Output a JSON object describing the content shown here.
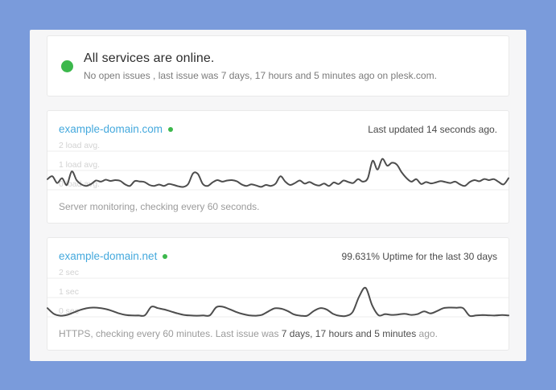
{
  "colors": {
    "frame_bg": "#7a9bdb",
    "page_bg": "#f6f6f7",
    "card_bg": "#ffffff",
    "card_border": "#e9e9e9",
    "green": "#3cb84c",
    "domain_blue": "#45a9dd",
    "chart_line": "#4d4d4d",
    "grid_line": "#ededed",
    "tick_label": "#d2d2d2"
  },
  "status_banner": {
    "title": "All services are online.",
    "subtitle": "No open issues , last issue was 7 days, 17 hours and 5 minutes ago on plesk.com."
  },
  "monitors": [
    {
      "domain": "example-domain.com",
      "header_right": "Last updated 14 seconds ago.",
      "footer_prefix": "Server monitoring, checking every 60 seconds.",
      "footer_strong": "",
      "footer_suffix": ""
    },
    {
      "domain": "example-domain.net",
      "header_right": "99.631% Uptime for the last 30 days",
      "footer_prefix": "HTTPS, checking every 60 minutes. Last issue was ",
      "footer_strong": "7 days, 17 hours and 5 minutes",
      "footer_suffix": " ago."
    }
  ],
  "chart_data": [
    {
      "type": "line",
      "title": "example-domain.com",
      "xlabel": "",
      "ylabel": "load avg.",
      "y_ticks": [
        "2 load avg.",
        "1 load avg.",
        "0 load avg."
      ],
      "y_tick_values": [
        2,
        1,
        0
      ],
      "ylim": [
        0,
        2.5
      ],
      "grid": true,
      "legend": "none",
      "values": [
        0.55,
        0.7,
        0.35,
        0.6,
        0.25,
        0.95,
        0.5,
        0.28,
        0.2,
        0.3,
        0.48,
        0.42,
        0.52,
        0.46,
        0.5,
        0.46,
        0.28,
        0.2,
        0.45,
        0.43,
        0.4,
        0.25,
        0.2,
        0.27,
        0.2,
        0.3,
        0.25,
        0.18,
        0.15,
        0.3,
        0.85,
        0.82,
        0.3,
        0.2,
        0.38,
        0.5,
        0.42,
        0.48,
        0.5,
        0.44,
        0.28,
        0.2,
        0.28,
        0.22,
        0.15,
        0.25,
        0.2,
        0.32,
        0.7,
        0.42,
        0.25,
        0.35,
        0.48,
        0.32,
        0.4,
        0.28,
        0.22,
        0.32,
        0.2,
        0.38,
        0.3,
        0.48,
        0.4,
        0.35,
        0.55,
        0.42,
        0.6,
        1.5,
        1.05,
        1.6,
        1.25,
        1.4,
        1.3,
        0.9,
        0.6,
        0.42,
        0.55,
        0.3,
        0.4,
        0.33,
        0.38,
        0.45,
        0.4,
        0.35,
        0.42,
        0.28,
        0.2,
        0.4,
        0.5,
        0.44,
        0.56,
        0.5,
        0.55,
        0.4,
        0.28,
        0.6
      ]
    },
    {
      "type": "line",
      "title": "example-domain.net",
      "xlabel": "",
      "ylabel": "sec",
      "y_ticks": [
        "2 sec",
        "1 sec",
        "0 sec"
      ],
      "y_tick_values": [
        2,
        1,
        0
      ],
      "ylim": [
        0,
        2.5
      ],
      "grid": true,
      "legend": "none",
      "values": [
        0.45,
        0.15,
        0.06,
        0.1,
        0.22,
        0.35,
        0.44,
        0.48,
        0.46,
        0.4,
        0.3,
        0.18,
        0.1,
        0.07,
        0.07,
        0.08,
        0.52,
        0.45,
        0.38,
        0.28,
        0.18,
        0.1,
        0.07,
        0.06,
        0.07,
        0.08,
        0.5,
        0.52,
        0.4,
        0.26,
        0.15,
        0.08,
        0.06,
        0.1,
        0.28,
        0.44,
        0.42,
        0.3,
        0.12,
        0.06,
        0.06,
        0.3,
        0.45,
        0.38,
        0.15,
        0.05,
        0.05,
        0.25,
        1.05,
        1.5,
        0.6,
        0.08,
        0.14,
        0.1,
        0.12,
        0.16,
        0.1,
        0.14,
        0.28,
        0.18,
        0.3,
        0.45,
        0.48,
        0.47,
        0.45,
        0.06,
        0.07,
        0.09,
        0.08,
        0.07,
        0.09,
        0.07
      ]
    }
  ]
}
